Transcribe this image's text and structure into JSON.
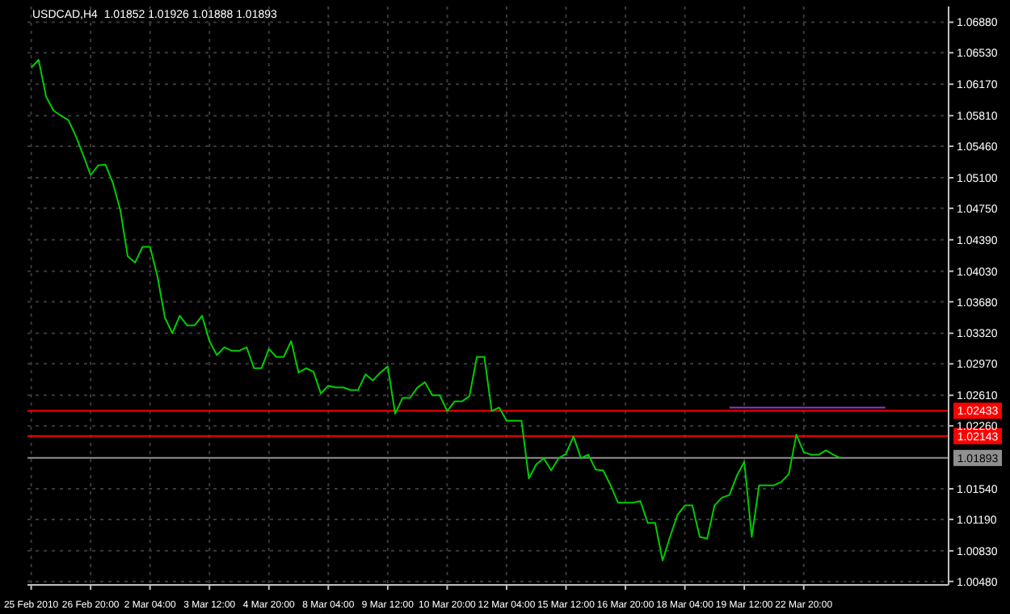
{
  "chart_data": {
    "type": "line",
    "title": "USDCAD,H4  1.01852 1.01926 1.01888 1.01893",
    "categories": [
      "25 Feb 2010",
      null,
      null,
      null,
      null,
      null,
      null,
      null,
      "26 Feb 20:00",
      null,
      null,
      null,
      null,
      null,
      null,
      null,
      "2 Mar 04:00",
      null,
      null,
      null,
      null,
      null,
      null,
      null,
      "3 Mar 12:00",
      null,
      null,
      null,
      null,
      null,
      null,
      null,
      "4 Mar 20:00",
      null,
      null,
      null,
      null,
      null,
      null,
      null,
      "8 Mar 04:00",
      null,
      null,
      null,
      null,
      null,
      null,
      null,
      "9 Mar 12:00",
      null,
      null,
      null,
      null,
      null,
      null,
      null,
      "10 Mar 20:00",
      null,
      null,
      null,
      null,
      null,
      null,
      null,
      "12 Mar 04:00",
      null,
      null,
      null,
      null,
      null,
      null,
      null,
      "15 Mar 12:00",
      null,
      null,
      null,
      null,
      null,
      null,
      null,
      "16 Mar 20:00",
      null,
      null,
      null,
      null,
      null,
      null,
      null,
      "18 Mar 04:00",
      null,
      null,
      null,
      null,
      null,
      null,
      null,
      "19 Mar 12:00",
      null,
      null,
      null,
      null,
      null,
      null,
      null,
      "22 Mar 20:00",
      null,
      null,
      null,
      null,
      null,
      null,
      null,
      null,
      null,
      null,
      null,
      null,
      null,
      null,
      null,
      null,
      null,
      null,
      null
    ],
    "series": [
      {
        "color": "#00cc00",
        "values": [
          1.0636,
          1.0645,
          1.0603,
          1.0587,
          1.0581,
          1.0576,
          1.0558,
          1.0536,
          1.0513,
          1.0524,
          1.0525,
          1.0504,
          1.0473,
          1.042,
          1.0413,
          1.0431,
          1.0431,
          1.0397,
          1.035,
          1.0332,
          1.0352,
          1.0341,
          1.0341,
          1.0352,
          1.0323,
          1.0307,
          1.0316,
          1.0312,
          1.0312,
          1.0316,
          1.0292,
          1.0292,
          1.0314,
          1.0305,
          1.0305,
          1.0323,
          1.0287,
          1.0292,
          1.0288,
          1.0263,
          1.0272,
          1.027,
          1.027,
          1.0267,
          1.0267,
          1.0285,
          1.0278,
          1.0287,
          1.0294,
          1.024,
          1.0258,
          1.0258,
          1.027,
          1.0276,
          1.0261,
          1.0261,
          1.0243,
          1.0254,
          1.0254,
          1.026,
          1.0305,
          1.0305,
          1.0243,
          1.0247,
          1.0232,
          1.0232,
          1.0232,
          1.0166,
          1.0182,
          1.0189,
          1.0175,
          1.0189,
          1.0194,
          1.0214,
          1.0189,
          1.0193,
          1.0176,
          1.0175,
          1.0158,
          1.0138,
          1.0138,
          1.0138,
          1.014,
          1.0115,
          1.0115,
          1.0072,
          1.0099,
          1.0124,
          1.0135,
          1.0135,
          1.0099,
          1.0097,
          1.0135,
          1.0144,
          1.0147,
          1.0169,
          1.0185,
          1.0099,
          1.0158,
          1.0158,
          1.0158,
          1.0162,
          1.0171,
          1.0216,
          1.0196,
          1.0193,
          1.0193,
          1.0198,
          1.0193,
          1.0189,
          null,
          null,
          null,
          null,
          null,
          null,
          null,
          null,
          null,
          null,
          null,
          null,
          null,
          null
        ]
      },
      {
        "color": "#9933cc",
        "values": [
          null,
          null,
          null,
          null,
          null,
          null,
          null,
          null,
          null,
          null,
          null,
          null,
          null,
          null,
          null,
          null,
          null,
          null,
          null,
          null,
          null,
          null,
          null,
          null,
          null,
          null,
          null,
          null,
          null,
          null,
          null,
          null,
          null,
          null,
          null,
          null,
          null,
          null,
          null,
          null,
          null,
          null,
          null,
          null,
          null,
          null,
          null,
          null,
          null,
          null,
          null,
          null,
          null,
          null,
          null,
          null,
          null,
          null,
          null,
          null,
          null,
          null,
          null,
          null,
          null,
          null,
          null,
          null,
          null,
          null,
          null,
          null,
          null,
          null,
          null,
          null,
          null,
          null,
          null,
          null,
          null,
          null,
          null,
          null,
          null,
          null,
          null,
          null,
          null,
          null,
          null,
          null,
          null,
          null,
          1.0247,
          1.0247,
          1.0247,
          1.0247,
          1.0247,
          1.0247,
          1.0247,
          1.0247,
          1.0247,
          1.0247,
          1.0247,
          1.0247,
          1.0247,
          1.0247,
          1.0247,
          1.0247,
          1.0247,
          1.0247,
          1.0247,
          1.0247,
          1.0247,
          1.0247,
          null,
          null,
          null,
          null,
          null,
          null,
          null,
          null
        ]
      }
    ],
    "ylim": [
      1.0044,
      1.0706
    ],
    "yticks": [
      {
        "value": 1.0688,
        "label": "1.06880"
      },
      {
        "value": 1.0653,
        "label": "1.06530"
      },
      {
        "value": 1.0617,
        "label": "1.06170"
      },
      {
        "value": 1.0581,
        "label": "1.05810"
      },
      {
        "value": 1.0546,
        "label": "1.05460"
      },
      {
        "value": 1.051,
        "label": "1.05100"
      },
      {
        "value": 1.0475,
        "label": "1.04750"
      },
      {
        "value": 1.0439,
        "label": "1.04390"
      },
      {
        "value": 1.0403,
        "label": "1.04030"
      },
      {
        "value": 1.0368,
        "label": "1.03680"
      },
      {
        "value": 1.0332,
        "label": "1.03320"
      },
      {
        "value": 1.0297,
        "label": "1.02970"
      },
      {
        "value": 1.0261,
        "label": "1.02610"
      },
      {
        "value": 1.0226,
        "label": "1.02260"
      },
      {
        "value": 1.0154,
        "label": "1.01540"
      },
      {
        "value": 1.0119,
        "label": "1.01190"
      },
      {
        "value": 1.0083,
        "label": "1.00830"
      },
      {
        "value": 1.0048,
        "label": "1.00480"
      }
    ],
    "grid": true,
    "marker": "none",
    "line_style": "solid",
    "ref_lines": [
      {
        "axis": "y",
        "value": 1.02433,
        "label": "1.02433",
        "color": "#ff0000"
      },
      {
        "axis": "y",
        "value": 1.02143,
        "label": "1.02143",
        "color": "#ff0000"
      },
      {
        "axis": "y",
        "value": 1.01893,
        "label": "1.01893",
        "color": "#909090"
      }
    ]
  }
}
